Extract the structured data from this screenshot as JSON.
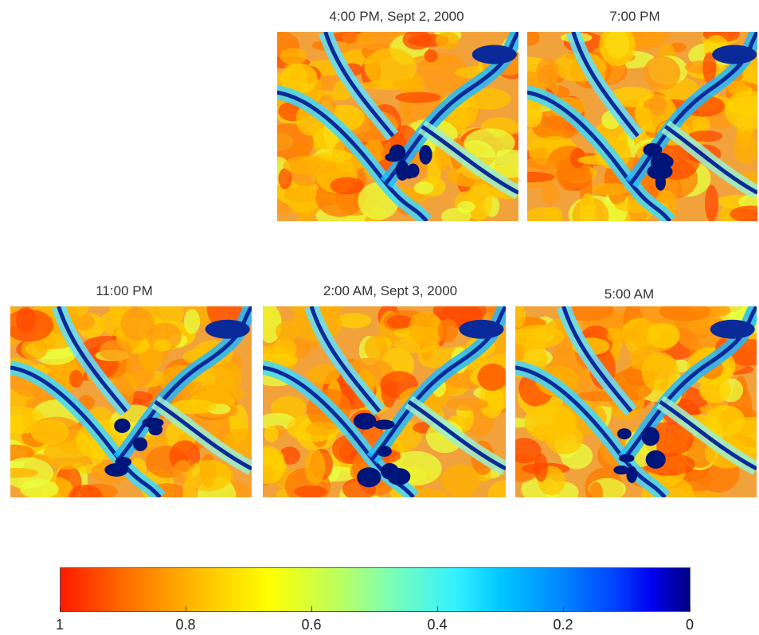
{
  "panels": [
    {
      "id": "p1",
      "title": "4:00 PM, Sept 2, 2000"
    },
    {
      "id": "p2",
      "title": "7:00 PM"
    },
    {
      "id": "p3",
      "title": "11:00 PM"
    },
    {
      "id": "p4",
      "title": "2:00 AM, Sept 3, 2000"
    },
    {
      "id": "p5",
      "title": "5:00 AM"
    }
  ],
  "colorbar": {
    "ticks": [
      "1",
      "0.8",
      "0.6",
      "0.4",
      "0.2",
      "0"
    ],
    "colors": {
      "high": "#ff1a00",
      "mid_high": "#ffb000",
      "mid": "#ffff00",
      "mid_low": "#33f0ff",
      "low": "#000080"
    }
  }
}
